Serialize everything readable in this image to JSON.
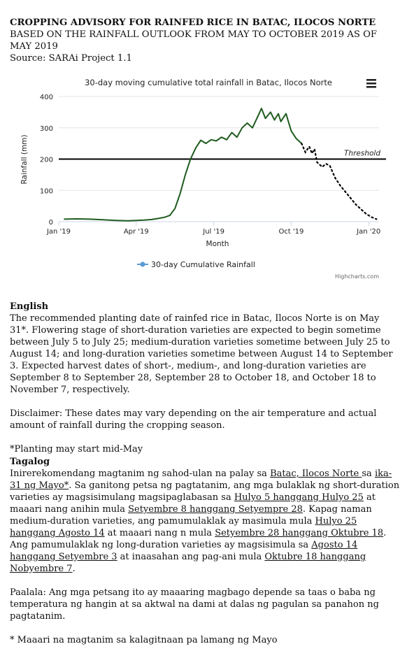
{
  "header": {
    "title": "CROPPING ADVISORY FOR RAINFED RICE IN BATAC, ILOCOS NORTE",
    "subtitle": "BASED ON THE RAINFALL OUTLOOK FROM MAY TO OCTOBER 2019 AS OF MAY 2019",
    "source": "Source: SARAi Project 1.1"
  },
  "chart_data": {
    "type": "line",
    "title": "30-day moving cumulative total rainfall in Batac, Ilocos Norte",
    "xlabel": "Month",
    "ylabel": "Rainfall (mm)",
    "ylim": [
      0,
      400
    ],
    "yticks": [
      0,
      100,
      200,
      300,
      400
    ],
    "xtick_labels": [
      "Jan '19",
      "Apr '19",
      "Jul '19",
      "Oct '19",
      "Jan '20"
    ],
    "xlim_months": [
      0,
      12.4
    ],
    "legend": "bottom-center",
    "legend_label": "30-day Cumulative Rainfall",
    "credits": "Highcharts.com",
    "threshold": {
      "value": 200,
      "label": "Threshold"
    },
    "observed_color": "#1f5c1f",
    "forecast_color": "#000000",
    "legend_color": "#5b9bd5",
    "observed": [
      [
        0.2,
        8
      ],
      [
        0.7,
        9
      ],
      [
        1.2,
        8
      ],
      [
        1.7,
        6
      ],
      [
        2.2,
        4
      ],
      [
        2.7,
        3
      ],
      [
        3.0,
        4
      ],
      [
        3.3,
        5
      ],
      [
        3.6,
        7
      ],
      [
        3.9,
        11
      ],
      [
        4.1,
        14
      ],
      [
        4.3,
        20
      ],
      [
        4.5,
        42
      ],
      [
        4.7,
        90
      ],
      [
        4.9,
        150
      ],
      [
        5.1,
        200
      ],
      [
        5.3,
        235
      ],
      [
        5.5,
        260
      ],
      [
        5.7,
        250
      ],
      [
        5.9,
        262
      ],
      [
        6.1,
        258
      ],
      [
        6.3,
        270
      ],
      [
        6.5,
        262
      ],
      [
        6.7,
        285
      ],
      [
        6.9,
        270
      ],
      [
        7.1,
        300
      ],
      [
        7.3,
        315
      ],
      [
        7.5,
        300
      ],
      [
        7.7,
        335
      ],
      [
        7.85,
        362
      ],
      [
        8.0,
        330
      ],
      [
        8.2,
        350
      ],
      [
        8.35,
        325
      ],
      [
        8.5,
        345
      ],
      [
        8.6,
        320
      ],
      [
        8.8,
        345
      ],
      [
        9.0,
        290
      ],
      [
        9.2,
        265
      ],
      [
        9.4,
        250
      ]
    ],
    "forecast": [
      [
        9.4,
        250
      ],
      [
        9.55,
        222
      ],
      [
        9.7,
        240
      ],
      [
        9.8,
        218
      ],
      [
        9.9,
        232
      ],
      [
        10.0,
        190
      ],
      [
        10.2,
        175
      ],
      [
        10.35,
        185
      ],
      [
        10.5,
        178
      ],
      [
        10.7,
        140
      ],
      [
        10.9,
        115
      ],
      [
        11.1,
        95
      ],
      [
        11.3,
        75
      ],
      [
        11.5,
        55
      ],
      [
        11.7,
        40
      ],
      [
        11.9,
        25
      ],
      [
        12.1,
        15
      ],
      [
        12.3,
        8
      ]
    ]
  },
  "english": {
    "heading": "English",
    "body": "The recommended planting date of rainfed rice in Batac, Ilocos Norte is on May 31*. Flowering stage of short-duration varieties are expected to begin sometime between July 5 to July 25; medium-duration varieties sometime between July 25 to August 14; and long-duration varieties sometime between August 14 to September 3. Expected harvest dates of short-, medium-, and long-duration varieties are September 8 to September 28, September 28 to October 18, and October 18 to November 7, respectively.",
    "disclaimer": "Disclaimer: These dates may vary depending on the air temperature and actual amount of rainfall during the cropping season.",
    "note": "*Planting may start mid-May"
  },
  "tagalog": {
    "heading": "Tagalog",
    "s1": "Inirerekomendang magtanim ng sahod-ulan na palay sa ",
    "u1": "Batac, Ilocos Norte ",
    "s2": "sa ",
    "u2": "ika-31 ng Mayo*",
    "s3": ". Sa ganitong petsa ng pagtatanim, ang mga bulaklak ng short-duration varieties ay magsisimulang magsipaglabasan sa ",
    "u3": "Hulyo 5 hanggang Hulyo 25",
    "s4": " at maaari nang anihin mula ",
    "u4": "Setyembre 8 hanggang Setyempre 28",
    "s5": ". Kapag naman medium-duration varieties, ang pamumulaklak ay masimula mula ",
    "u5": "Hulyo 25 hanggang Agosto 14",
    "s6": " at maaari nang n mula ",
    "u6": "Setyembre 28 hanggang Oktubre 18",
    "s7": ". Ang pamumulaklak ng long-duration varieties ay magsisimula sa ",
    "u7": "Agosto 14 hanggang Setyembre 3",
    "s8": " at inaasahan ang pag-ani mula ",
    "u8": "Oktubre 18 hanggang Nobyembre 7",
    "s9": ".",
    "paalala": "Paalala: Ang mga petsang ito ay maaaring magbago depende sa taas o baba ng temperatura ng hangin at sa aktwal na dami at dalas ng pagulan sa panahon ng pagtatanim.",
    "note": "* Maaari na magtanim sa kalagitnaan pa lamang ng Mayo"
  }
}
